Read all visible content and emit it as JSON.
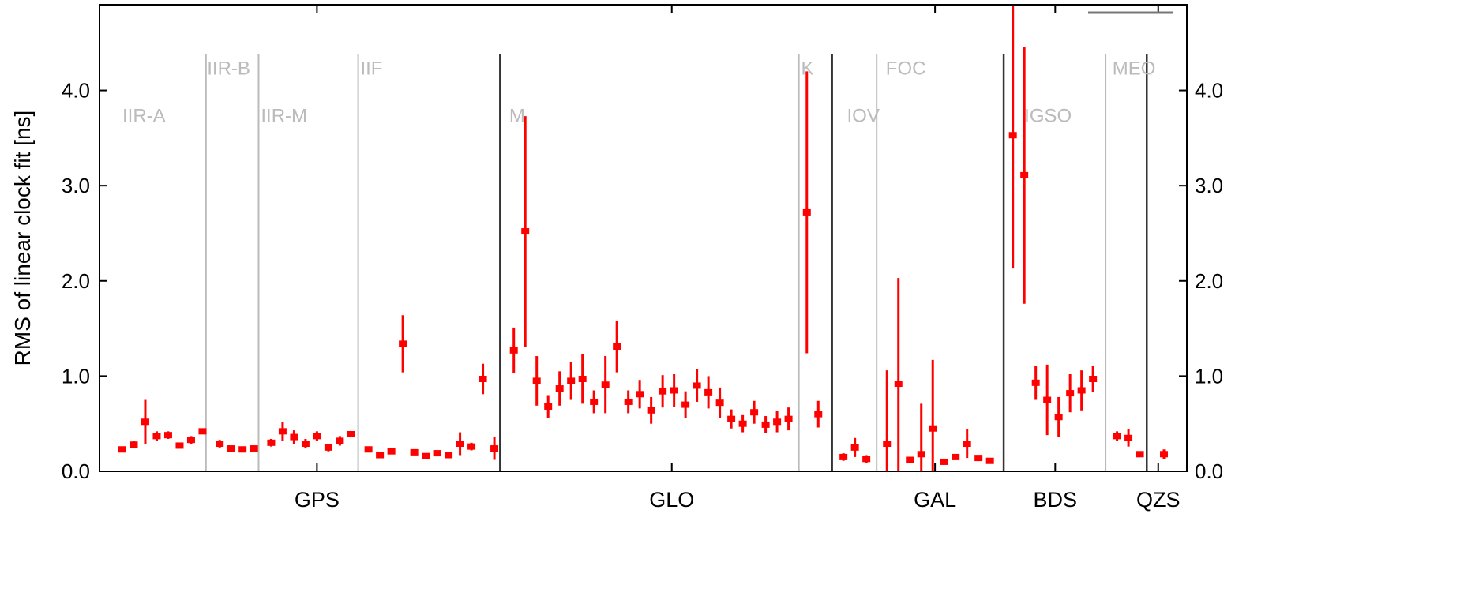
{
  "chart_data": {
    "type": "scatter",
    "title": "",
    "ylabel": "RMS of linear clock fit [ns]",
    "xlabel": "",
    "ylim": [
      0,
      4.9
    ],
    "y_ticks": [
      "0.0",
      "1.0",
      "2.0",
      "3.0",
      "4.0"
    ],
    "y_tick_values": [
      0,
      1,
      2,
      3,
      4
    ],
    "grid": false,
    "legend": "top-right",
    "legend_entries": [
      ""
    ],
    "colors": {
      "points": "#ff0000",
      "group_separator": "#333333",
      "block_separator": "#bbbbbb",
      "block_label": "#bbbbbb",
      "legend_line": "#777777"
    },
    "x_count": 95,
    "groups": [
      {
        "name": "GPS",
        "label_x": 19
      },
      {
        "name": "GLO",
        "label_x": 50
      },
      {
        "name": "GAL",
        "label_x": 73
      },
      {
        "name": "BDS",
        "label_x": 83.5
      },
      {
        "name": "QZS",
        "label_x": 92.5
      }
    ],
    "group_separators": [
      35,
      64,
      79,
      91.5
    ],
    "blocks": [
      {
        "name": "IIR-A",
        "x": 2,
        "label_level": 3.75
      },
      {
        "name": "IIR-B",
        "x": 9.4,
        "label_level": 4.25
      },
      {
        "name": "IIR-M",
        "x": 14.1,
        "label_level": 3.75
      },
      {
        "name": "IIF",
        "x": 22.8,
        "label_level": 4.25
      },
      {
        "name": "M",
        "x": 35.8,
        "label_level": 3.75
      },
      {
        "name": "K",
        "x": 61.3,
        "label_level": 4.25
      },
      {
        "name": "IOV",
        "x": 65.3,
        "label_level": 3.75
      },
      {
        "name": "FOC",
        "x": 68.7,
        "label_level": 4.25
      },
      {
        "name": "IGSO",
        "x": 80.8,
        "label_level": 3.75
      },
      {
        "name": "MEO",
        "x": 88.5,
        "label_level": 4.25
      }
    ],
    "block_separators": [
      9.3,
      13.9,
      22.6,
      61.1,
      67.9,
      87.9
    ],
    "x": [
      2,
      3,
      4,
      5,
      6,
      7,
      8,
      9,
      10.5,
      11.5,
      12.5,
      13.5,
      15,
      16,
      17,
      18,
      19,
      20,
      21,
      22,
      23.5,
      24.5,
      25.5,
      26.5,
      27.5,
      28.5,
      29.5,
      30.5,
      31.5,
      32.5,
      33.5,
      34.5,
      36.2,
      37.2,
      38.2,
      39.2,
      40.2,
      41.2,
      42.2,
      43.2,
      44.2,
      45.2,
      46.2,
      47.2,
      48.2,
      49.2,
      50.2,
      51.2,
      52.2,
      53.2,
      54.2,
      55.2,
      56.2,
      57.2,
      58.2,
      59.2,
      60.2,
      61.8,
      62.8,
      65,
      66,
      67,
      68.8,
      69.8,
      70.8,
      71.8,
      72.8,
      73.8,
      74.8,
      75.8,
      76.8,
      77.8,
      79.8,
      80.8,
      81.8,
      82.8,
      83.8,
      84.8,
      85.8,
      86.8,
      88.9,
      89.9,
      90.9,
      93
    ],
    "y": [
      0.23,
      0.28,
      0.52,
      0.37,
      0.38,
      0.27,
      0.33,
      0.42,
      0.29,
      0.24,
      0.23,
      0.24,
      0.3,
      0.42,
      0.36,
      0.29,
      0.37,
      0.25,
      0.32,
      0.39,
      0.23,
      0.17,
      0.21,
      1.34,
      0.2,
      0.16,
      0.19,
      0.17,
      0.29,
      0.26,
      0.97,
      0.24,
      1.27,
      2.52,
      0.95,
      0.68,
      0.87,
      0.95,
      0.97,
      0.73,
      0.91,
      1.31,
      0.73,
      0.81,
      0.64,
      0.84,
      0.85,
      0.7,
      0.9,
      0.83,
      0.72,
      0.55,
      0.5,
      0.62,
      0.49,
      0.52,
      0.55,
      2.72,
      0.6,
      0.15,
      0.25,
      0.13,
      0.29,
      0.92,
      0.12,
      0.18,
      0.45,
      0.1,
      0.15,
      0.29,
      0.14,
      0.11,
      3.53,
      3.11,
      0.93,
      0.75,
      0.57,
      0.82,
      0.85,
      0.97,
      0.37,
      0.35,
      0.18,
      0.18
    ],
    "err": [
      0.03,
      0.04,
      0.23,
      0.05,
      0.04,
      0.03,
      0.04,
      0.03,
      0.04,
      0.03,
      0.03,
      0.03,
      0.04,
      0.1,
      0.07,
      0.05,
      0.05,
      0.04,
      0.05,
      0.03,
      0.03,
      0.02,
      0.03,
      0.3,
      0.02,
      0.02,
      0.03,
      0.03,
      0.12,
      0.04,
      0.16,
      0.12,
      0.24,
      1.21,
      0.26,
      0.12,
      0.18,
      0.2,
      0.26,
      0.12,
      0.3,
      0.27,
      0.12,
      0.15,
      0.14,
      0.17,
      0.17,
      0.14,
      0.17,
      0.17,
      0.16,
      0.1,
      0.09,
      0.12,
      0.09,
      0.11,
      0.12,
      1.48,
      0.14,
      0.04,
      0.1,
      0.04,
      0.77,
      1.11,
      0.03,
      0.53,
      0.72,
      0.02,
      0.03,
      0.15,
      0.03,
      0.02,
      1.4,
      1.35,
      0.18,
      0.37,
      0.21,
      0.2,
      0.21,
      0.14,
      0.05,
      0.09,
      0.03,
      0.05
    ]
  }
}
